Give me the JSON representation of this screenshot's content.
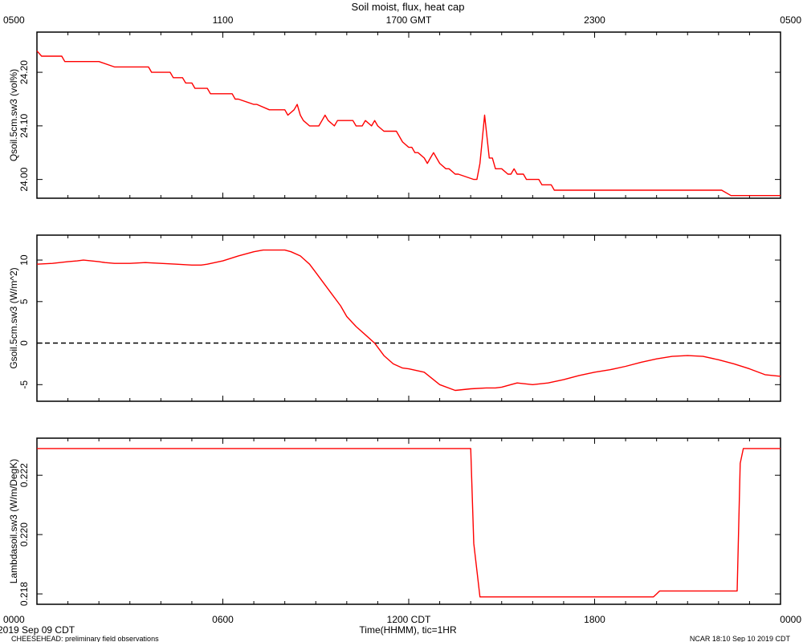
{
  "title": "Soil moist, flux, heat cap",
  "colors": {
    "series": "#ff0000",
    "axes": "#000000",
    "zero_line": "#000000"
  },
  "top_axis": {
    "ticks": [
      "0500",
      "1100",
      "1700 GMT",
      "2300",
      "0500"
    ],
    "tick_hours": [
      0,
      6,
      12,
      18,
      24
    ]
  },
  "bottom_axis": {
    "ticks": [
      "0000",
      "0600",
      "1200 CDT",
      "1800",
      "0000"
    ],
    "tick_hours": [
      0,
      6,
      12,
      18,
      24
    ],
    "label": "Time(HHMM), tic=1HR"
  },
  "footer": {
    "date": "2019 Sep 09 CDT",
    "source": "CHEESEHEAD: preliminary field observations",
    "stamp": "NCAR 18:10 Sep 10 2019 CDT"
  },
  "chart_data": [
    {
      "type": "line",
      "ylabel": "Qsoil.5cm.sw3 (vol%)",
      "ylim": [
        23.965,
        24.275
      ],
      "yticks": [
        "24.00",
        "24.10",
        "24.20"
      ],
      "ytick_values": [
        24.0,
        24.1,
        24.2
      ],
      "series": [
        {
          "x": [
            0,
            0.15,
            0.3,
            0.8,
            0.9,
            1.0,
            2.0,
            2.5,
            2.6,
            3.6,
            3.7,
            3.9,
            4.0,
            4.1,
            4.2,
            4.3,
            4.4,
            4.5,
            4.7,
            4.8,
            4.9,
            5.0,
            5.1,
            5.3,
            5.5,
            5.6,
            6.3,
            6.4,
            6.5,
            7.0,
            7.1,
            7.5,
            7.6,
            8.0,
            8.1,
            8.3,
            8.4,
            8.5,
            8.6,
            8.8,
            8.9,
            9.1,
            9.2,
            9.3,
            9.4,
            9.6,
            9.7,
            9.9,
            10.2,
            10.3,
            10.5,
            10.6,
            10.8,
            10.9,
            11.0,
            11.2,
            11.4,
            11.6,
            11.8,
            12.0,
            12.1,
            12.2,
            12.3,
            12.5,
            12.6,
            12.7,
            12.8,
            12.9,
            13.0,
            13.2,
            13.3,
            13.5,
            13.6,
            14.1,
            14.2,
            14.3,
            14.45,
            14.6,
            14.7,
            14.8,
            15.0,
            15.2,
            15.3,
            15.4,
            15.5,
            15.7,
            15.8,
            16.0,
            16.1,
            16.2,
            16.3,
            16.5,
            16.6,
            16.7,
            17.0,
            17.1,
            17.5,
            17.6,
            18.0,
            18.2,
            18.3,
            18.5,
            18.6,
            19.0,
            19.5,
            20.0,
            21.5,
            21.6,
            22.0,
            22.1,
            22.4,
            24.0
          ],
          "values": [
            24.24,
            24.23,
            24.23,
            24.23,
            24.22,
            24.22,
            24.22,
            24.21,
            24.21,
            24.21,
            24.2,
            24.2,
            24.2,
            24.2,
            24.2,
            24.2,
            24.19,
            24.19,
            24.19,
            24.18,
            24.18,
            24.18,
            24.17,
            24.17,
            24.17,
            24.16,
            24.16,
            24.15,
            24.15,
            24.14,
            24.14,
            24.13,
            24.13,
            24.13,
            24.12,
            24.13,
            24.14,
            24.12,
            24.11,
            24.1,
            24.1,
            24.1,
            24.11,
            24.12,
            24.11,
            24.1,
            24.11,
            24.11,
            24.11,
            24.1,
            24.1,
            24.11,
            24.1,
            24.11,
            24.1,
            24.09,
            24.09,
            24.09,
            24.07,
            24.06,
            24.06,
            24.05,
            24.05,
            24.04,
            24.03,
            24.04,
            24.05,
            24.04,
            24.03,
            24.02,
            24.02,
            24.01,
            24.01,
            24.0,
            24.0,
            24.03,
            24.12,
            24.04,
            24.04,
            24.02,
            24.02,
            24.01,
            24.01,
            24.02,
            24.01,
            24.01,
            24.0,
            24.0,
            24.0,
            24.0,
            23.99,
            23.99,
            23.99,
            23.98,
            23.98,
            23.98,
            23.98,
            23.98,
            23.98,
            23.98,
            23.98,
            23.98,
            23.98,
            23.98,
            23.98,
            23.98,
            23.98,
            23.98,
            23.98,
            23.98,
            23.97,
            23.97
          ]
        }
      ]
    },
    {
      "type": "line",
      "ylabel": "Gsoil.5cm.sw3 (W/m^2)",
      "ylim": [
        -7,
        13
      ],
      "yticks": [
        "-5",
        "0",
        "5",
        "10"
      ],
      "ytick_values": [
        -5,
        0,
        5,
        10
      ],
      "zero_line": true,
      "series": [
        {
          "x": [
            0,
            0.5,
            1.0,
            1.3,
            1.5,
            2.0,
            2.2,
            2.5,
            3.0,
            3.5,
            4.0,
            4.5,
            5.0,
            5.3,
            5.5,
            6.0,
            6.5,
            7.0,
            7.3,
            7.5,
            7.7,
            8.0,
            8.2,
            8.5,
            8.8,
            9.0,
            9.2,
            9.5,
            9.8,
            10.0,
            10.3,
            10.6,
            10.9,
            11.0,
            11.2,
            11.5,
            11.8,
            12.0,
            12.5,
            13.0,
            13.5,
            14.0,
            14.5,
            14.8,
            15.0,
            15.5,
            16.0,
            16.5,
            17.0,
            17.5,
            18.0,
            18.5,
            19.0,
            19.5,
            20.0,
            20.5,
            21.0,
            21.5,
            22.0,
            22.5,
            23.0,
            23.5,
            24.0
          ],
          "values": [
            9.5,
            9.6,
            9.8,
            9.9,
            10.0,
            9.8,
            9.7,
            9.6,
            9.6,
            9.7,
            9.6,
            9.5,
            9.4,
            9.4,
            9.5,
            9.9,
            10.5,
            11.0,
            11.2,
            11.2,
            11.2,
            11.2,
            11.0,
            10.5,
            9.5,
            8.5,
            7.5,
            6.0,
            4.5,
            3.2,
            2.0,
            1.0,
            0.0,
            -0.5,
            -1.5,
            -2.5,
            -3.0,
            -3.1,
            -3.5,
            -5.0,
            -5.7,
            -5.5,
            -5.4,
            -5.4,
            -5.3,
            -4.8,
            -5.0,
            -4.8,
            -4.4,
            -3.9,
            -3.5,
            -3.2,
            -2.8,
            -2.3,
            -1.9,
            -1.6,
            -1.5,
            -1.6,
            -2.0,
            -2.5,
            -3.1,
            -3.8,
            -4.0
          ]
        }
      ]
    },
    {
      "type": "line",
      "ylabel": "Lambdasoil.sw3 (W/m/DegK)",
      "ylim": [
        0.21765,
        0.22325
      ],
      "yticks": [
        "0.218",
        "0.220",
        "0.222"
      ],
      "ytick_values": [
        0.218,
        0.22,
        0.222
      ],
      "series": [
        {
          "x": [
            0,
            14.0,
            14.1,
            14.3,
            19.9,
            20.0,
            20.1,
            22.6,
            22.7,
            22.8,
            23.0,
            24.0
          ],
          "values": [
            0.2229,
            0.2229,
            0.2197,
            0.2179,
            0.2179,
            0.218,
            0.2181,
            0.2181,
            0.2224,
            0.2229,
            0.2229,
            0.2229
          ]
        }
      ]
    }
  ]
}
